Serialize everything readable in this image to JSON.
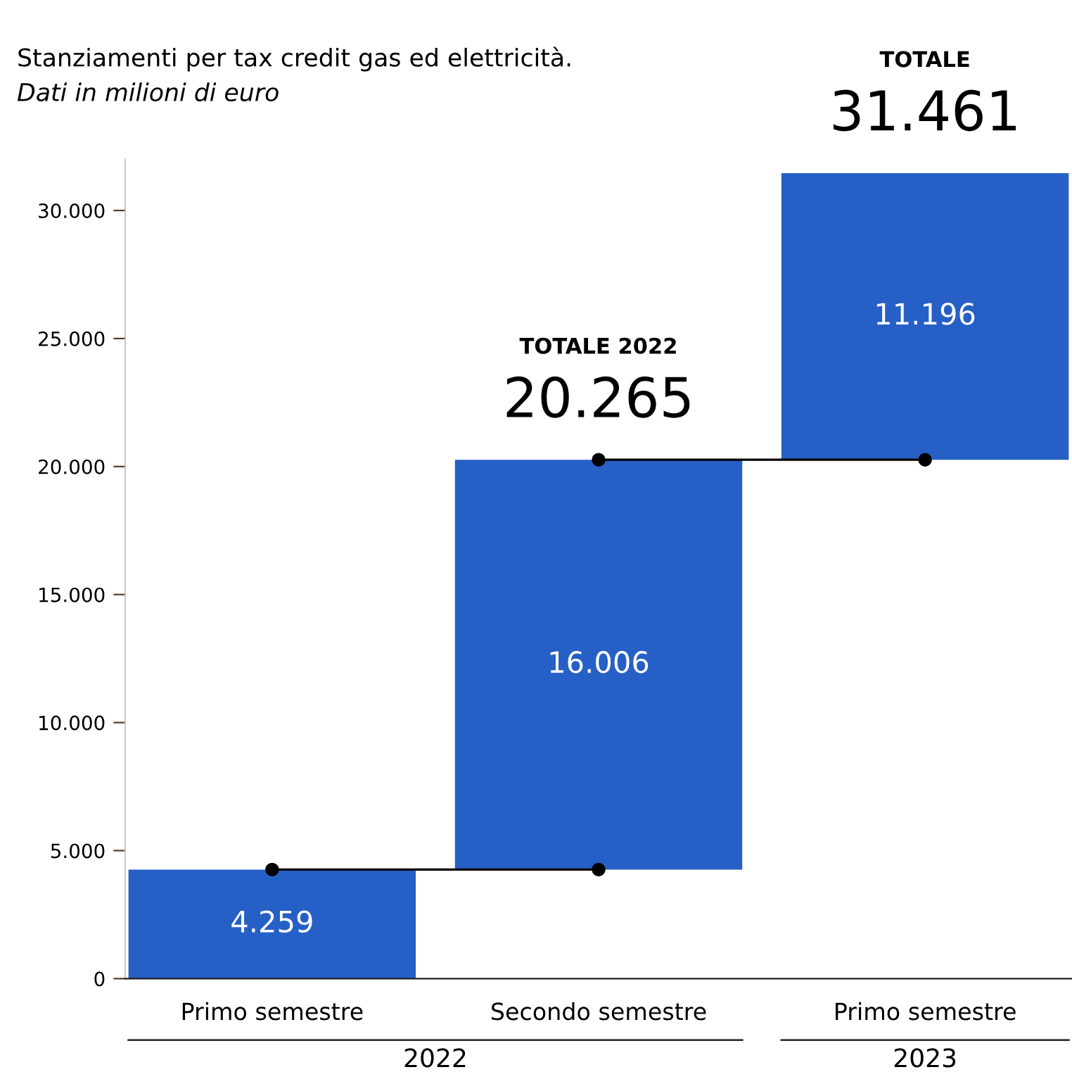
{
  "chart_data": {
    "type": "bar",
    "title": "Stanziamenti per tax credit gas ed elettricità.",
    "subtitle": "Dati in milioni di euro",
    "categories": [
      "Primo semestre",
      "Secondo semestre",
      "Primo semestre"
    ],
    "series": [
      {
        "values": [
          4259,
          16006,
          11196
        ],
        "base": [
          0,
          4259,
          20265
        ],
        "color": "#2660c6",
        "value_labels": [
          "4.259",
          "16.006",
          "11.196"
        ]
      },
      {
        "type": "line",
        "values": [
          4259,
          4259,
          null
        ],
        "color": "#000000",
        "marker": "circle"
      },
      {
        "type": "line",
        "values": [
          null,
          20265,
          20265
        ],
        "color": "#000000",
        "marker": "circle"
      }
    ],
    "ylim": [
      0,
      32000
    ],
    "yticks": [
      {
        "value": 0,
        "label": "0"
      },
      {
        "value": 5000,
        "label": "5.000"
      },
      {
        "value": 10000,
        "label": "10.000"
      },
      {
        "value": 15000,
        "label": "15.000"
      },
      {
        "value": 20000,
        "label": "20.000"
      },
      {
        "value": 25000,
        "label": "25.000"
      },
      {
        "value": 30000,
        "label": "30.000"
      }
    ],
    "annotations": [
      "TOTALE 2022",
      "20.265",
      "TOTALE",
      "31.461",
      "2022",
      "2023"
    ],
    "grid": false
  }
}
